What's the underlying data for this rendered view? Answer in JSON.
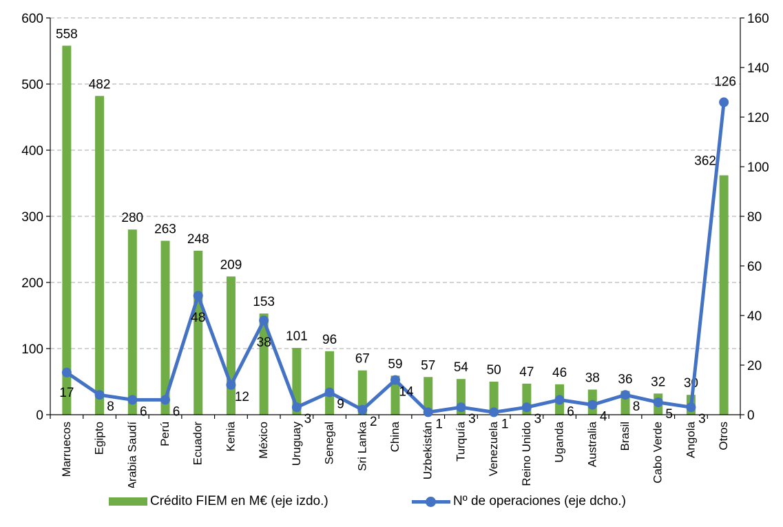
{
  "chart_data": {
    "type": "bar",
    "categories": [
      "Marruecos",
      "Egipto",
      "Arabia Saudí",
      "Perú",
      "Ecuador",
      "Kenia",
      "México",
      "Uruguay",
      "Senegal",
      "Sri Lanka",
      "China",
      "Uzbekistán",
      "Turquía",
      "Venezuela",
      "Reino Unido",
      "Uganda",
      "Australia",
      "Brasil",
      "Cabo Verde",
      "Angola",
      "Otros"
    ],
    "series": [
      {
        "name": "Crédito FIEM en M€ (eje izdo.)",
        "type": "bar",
        "axis": "left",
        "color": "#70ad47",
        "values": [
          558,
          482,
          280,
          263,
          248,
          209,
          153,
          101,
          96,
          67,
          59,
          57,
          54,
          50,
          47,
          46,
          38,
          36,
          32,
          30,
          362
        ]
      },
      {
        "name": "Nº de operaciones (eje dcho.)",
        "type": "line",
        "axis": "right",
        "color": "#4472c4",
        "values": [
          17,
          8,
          6,
          6,
          48,
          12,
          38,
          3,
          9,
          2,
          14,
          1,
          3,
          1,
          3,
          6,
          4,
          8,
          5,
          3,
          126
        ]
      }
    ],
    "y_left": {
      "min": 0,
      "max": 600,
      "ticks": [
        0,
        100,
        200,
        300,
        400,
        500,
        600
      ]
    },
    "y_right": {
      "min": 0,
      "max": 160,
      "ticks": [
        0,
        20,
        40,
        60,
        80,
        100,
        120,
        140,
        160
      ]
    },
    "grid": true,
    "legend_position": "bottom"
  },
  "legend": {
    "bar_label": "Crédito FIEM en M€ (eje izdo.)",
    "line_label": "Nº de operaciones (eje dcho.)"
  }
}
